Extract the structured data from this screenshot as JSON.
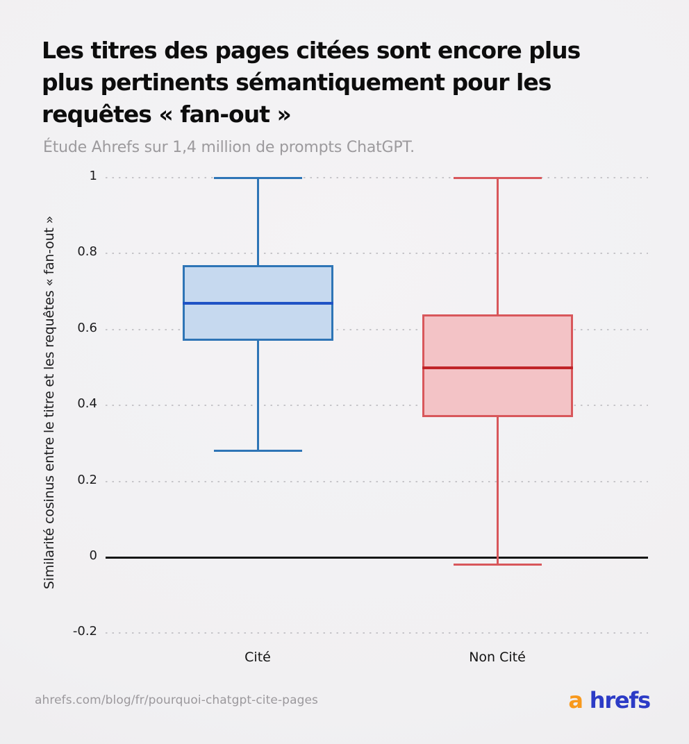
{
  "header": {
    "title_lines": [
      "Les titres des pages citées sont encore plus",
      "plus pertinents sémantiquement pour les",
      "requêtes « fan-out »"
    ],
    "subtitle": "Étude Ahrefs sur 1,4 million de prompts ChatGPT."
  },
  "chart_data": {
    "type": "boxplot",
    "title": "Les titres des pages citées sont encore plus plus pertinents sémantiquement pour les requêtes « fan-out »",
    "subtitle": "Étude Ahrefs sur 1,4 million de prompts ChatGPT.",
    "ylabel": "Similarité cosinus entre le titre et les requêtes « fan-out »",
    "categories": [
      "Cité",
      "Non Cité"
    ],
    "series": [
      {
        "name": "Cité",
        "whisker_low": 0.28,
        "q1": 0.57,
        "median": 0.67,
        "q3": 0.77,
        "whisker_high": 1.0,
        "fill": "#c6d9ef",
        "stroke": "#2e75b6",
        "median_color": "#1f53c5"
      },
      {
        "name": "Non Cité",
        "whisker_low": -0.02,
        "q1": 0.37,
        "median": 0.5,
        "q3": 0.64,
        "whisker_high": 1.0,
        "fill": "#f3c3c6",
        "stroke": "#d8575b",
        "median_color": "#c02428"
      }
    ],
    "yticks": [
      {
        "value": 1,
        "label": "1"
      },
      {
        "value": 0.8,
        "label": "0.8"
      },
      {
        "value": 0.6,
        "label": "0.6"
      },
      {
        "value": 0.4,
        "label": "0.4"
      },
      {
        "value": 0.2,
        "label": "0.2"
      },
      {
        "value": 0,
        "label": "0"
      },
      {
        "value": -0.2,
        "label": "-0.2"
      }
    ],
    "ylim": [
      -0.21,
      1.0
    ],
    "grid": "horizontal-dotted",
    "zero_line": true,
    "legend": "none"
  },
  "footer": {
    "source_url": "ahrefs.com/blog/fr/pourquoi-chatgpt-cite-pages",
    "logo": {
      "first_letter": "a",
      "rest": "hrefs"
    }
  },
  "colors": {
    "background": "#f1f0f2",
    "title": "#0d0d0d",
    "subtitle": "#9c9a9d",
    "tick_label": "#1c1c1e",
    "grid_dot": "#c6c5c9",
    "zero_line": "#161616",
    "url": "#9b989c",
    "logo_a": "#f8991d",
    "logo_rest": "#2c3bc6"
  }
}
